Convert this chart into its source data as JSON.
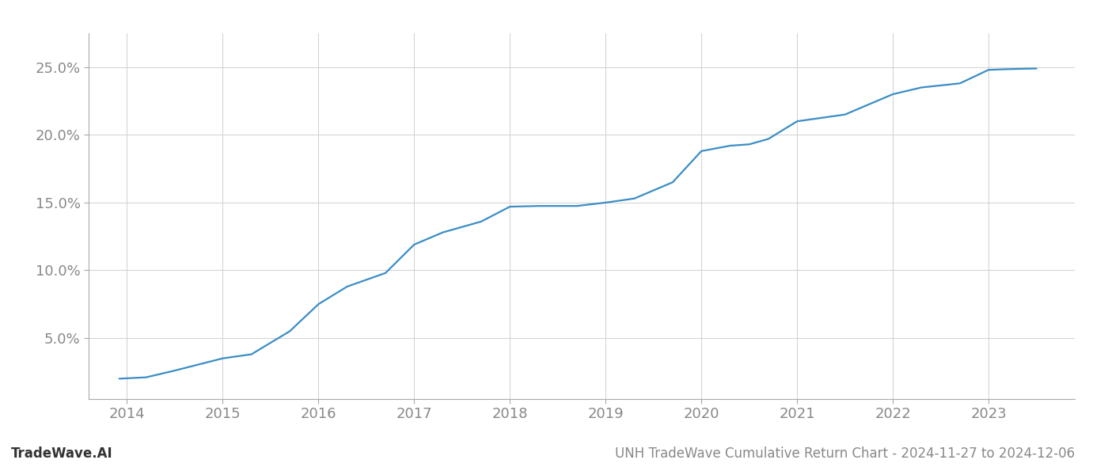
{
  "x": [
    2013.92,
    2014.2,
    2014.5,
    2015.0,
    2015.3,
    2015.7,
    2016.0,
    2016.3,
    2016.7,
    2017.0,
    2017.3,
    2017.7,
    2018.0,
    2018.3,
    2018.7,
    2019.0,
    2019.3,
    2019.7,
    2020.0,
    2020.3,
    2020.5,
    2020.7,
    2021.0,
    2021.3,
    2021.5,
    2022.0,
    2022.3,
    2022.7,
    2023.0,
    2023.2,
    2023.5
  ],
  "y": [
    2.0,
    2.1,
    2.6,
    3.5,
    3.8,
    5.5,
    7.5,
    8.8,
    9.8,
    11.9,
    12.8,
    13.6,
    14.7,
    14.75,
    14.75,
    15.0,
    15.3,
    16.5,
    18.8,
    19.2,
    19.3,
    19.7,
    21.0,
    21.3,
    21.5,
    23.0,
    23.5,
    23.8,
    24.8,
    24.85,
    24.9
  ],
  "line_color": "#3a8dc5",
  "line_width": 1.6,
  "title": "UNH TradeWave Cumulative Return Chart - 2024-11-27 to 2024-12-06",
  "watermark": "TradeWave.AI",
  "xlim": [
    2013.6,
    2023.9
  ],
  "ylim": [
    0.5,
    27.5
  ],
  "xticks": [
    2014,
    2015,
    2016,
    2017,
    2018,
    2019,
    2020,
    2021,
    2022,
    2023
  ],
  "yticks": [
    5.0,
    10.0,
    15.0,
    20.0,
    25.0
  ],
  "ytick_labels": [
    "5.0%",
    "10.0%",
    "15.0%",
    "20.0%",
    "25.0%"
  ],
  "bg_color": "#ffffff",
  "grid_color": "#d0d0d0",
  "title_fontsize": 12,
  "watermark_fontsize": 12,
  "tick_fontsize": 13,
  "tick_color": "#888888",
  "spine_color": "#aaaaaa"
}
